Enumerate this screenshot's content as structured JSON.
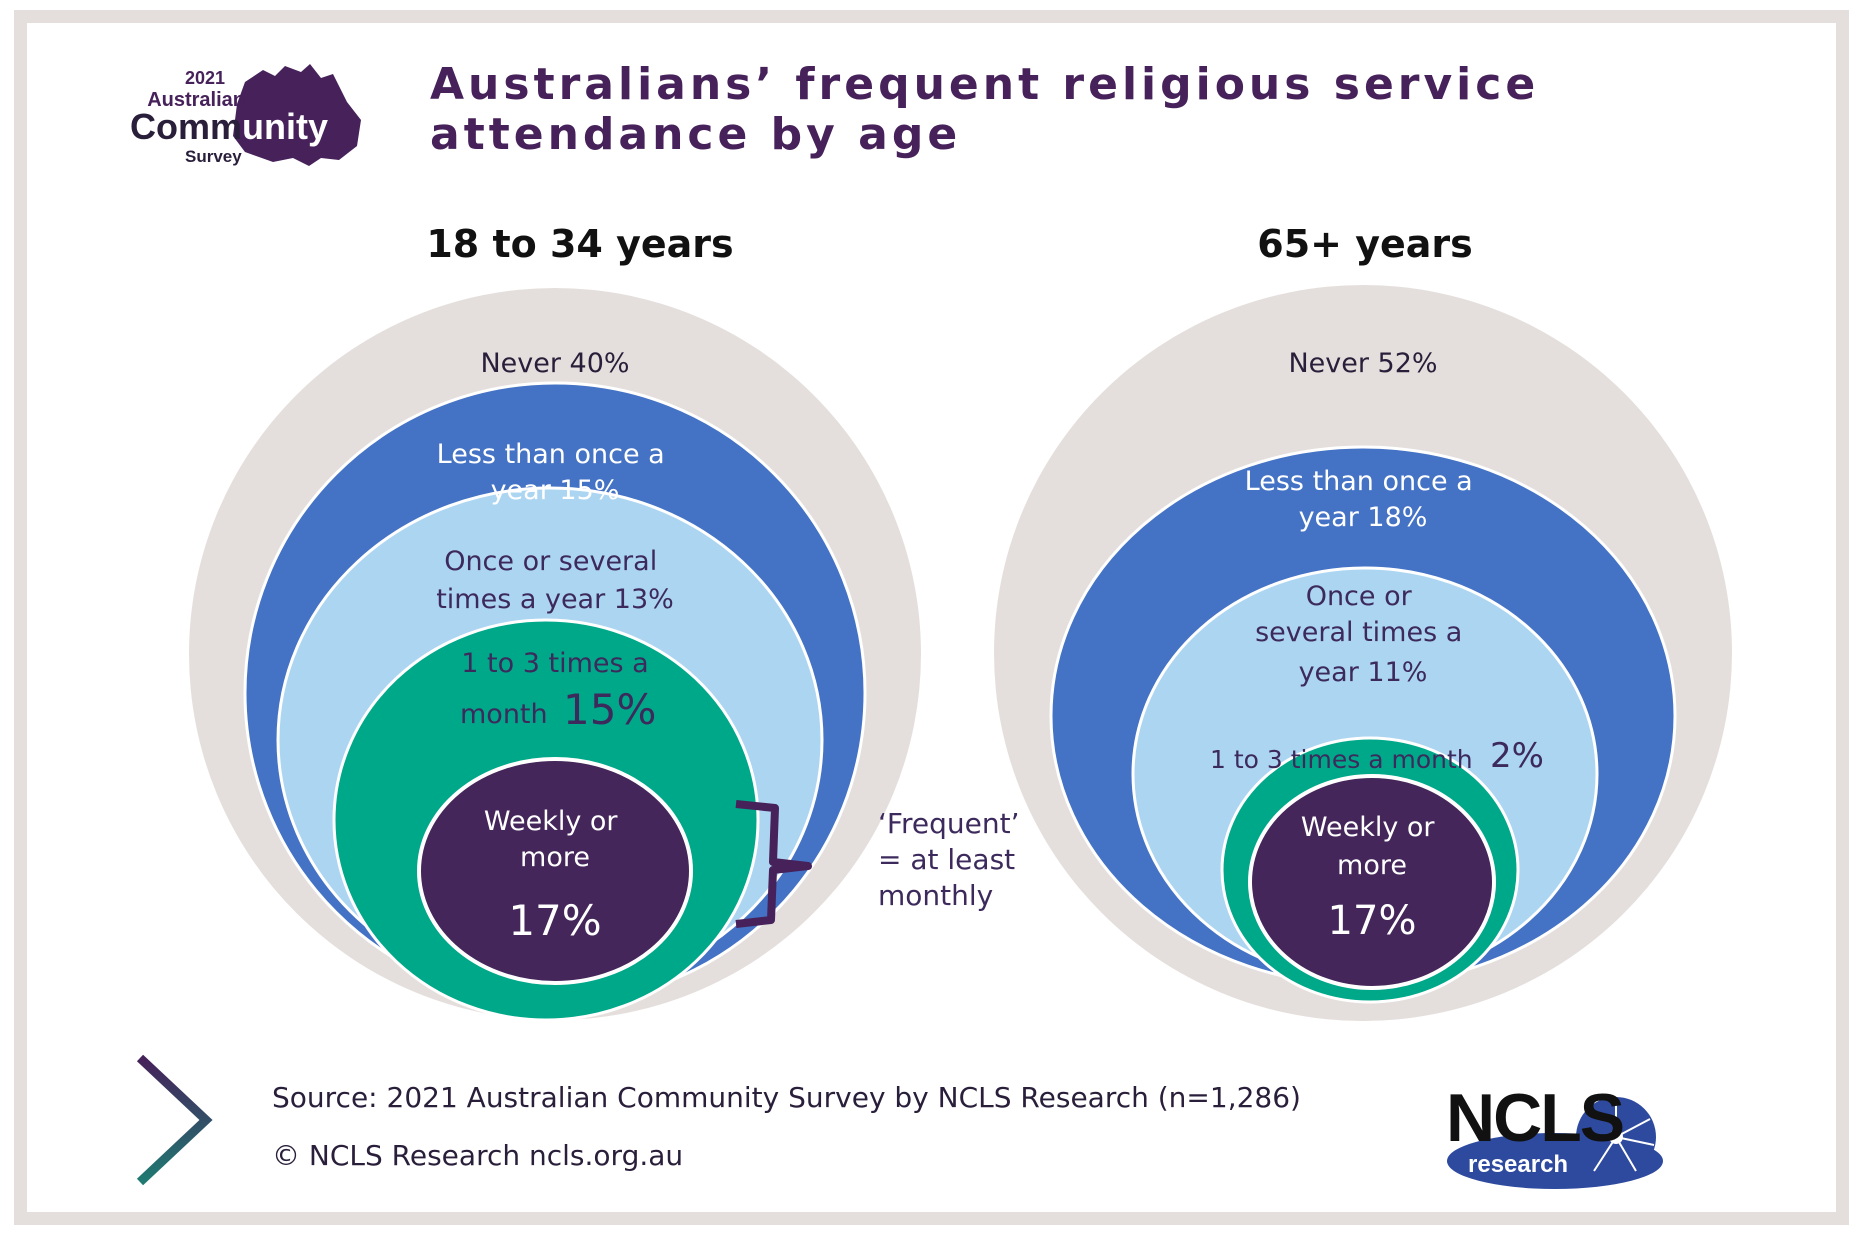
{
  "title": "Australians’ frequent religious service attendance by age",
  "logo_acs": {
    "year": "2021",
    "line1": "Australian",
    "line2a": "Comm",
    "line2b": "unity",
    "line3": "Survey"
  },
  "logo_ncls": {
    "main": "NCLS",
    "sub": "research"
  },
  "icons": {
    "chevron": "chevron-right-icon"
  },
  "colors": {
    "never": "#e4dfdc",
    "less_than_yearly": "#4472c4",
    "yearly": "#acd5f2",
    "monthly": "#00a88a",
    "weekly": "#44265a",
    "text_dark": "#46215a",
    "bracket": "#46215a"
  },
  "chart_data": [
    {
      "type": "nested-circles",
      "title": "18 to 34 years",
      "rings": [
        {
          "label": "Never",
          "value": 40,
          "text": "Never 40%"
        },
        {
          "label": "Less than once a year",
          "value": 15,
          "text": [
            "Less than once a",
            "year 15%"
          ]
        },
        {
          "label": "Once or several times a year",
          "value": 13,
          "text": [
            "Once or several",
            "times a year 13%"
          ]
        },
        {
          "label": "1 to 3 times a month",
          "value": 15,
          "text": [
            "1 to 3 times a",
            "month",
            "15%"
          ]
        },
        {
          "label": "Weekly or more",
          "value": 17,
          "text": [
            "Weekly or",
            "more",
            "17%"
          ]
        }
      ],
      "annotation": [
        "‘Frequent’",
        "= at least",
        "monthly"
      ]
    },
    {
      "type": "nested-circles",
      "title": "65+ years",
      "rings": [
        {
          "label": "Never",
          "value": 52,
          "text": "Never 52%"
        },
        {
          "label": "Less than once a year",
          "value": 18,
          "text": [
            "Less than once a",
            "year 18%"
          ]
        },
        {
          "label": "Once or several times a year",
          "value": 11,
          "text": [
            "Once or",
            "several times a",
            "year 11%"
          ]
        },
        {
          "label": "1 to 3 times a month",
          "value": 2,
          "text": [
            "1 to 3 times a month",
            "2%"
          ]
        },
        {
          "label": "Weekly or more",
          "value": 17,
          "text": [
            "Weekly or",
            "more",
            "17%"
          ]
        }
      ]
    }
  ],
  "footer": {
    "source": "Source: 2021 Australian Community Survey by NCLS Research (n=1,286)",
    "copyright": "© NCLS Research   ncls.org.au"
  }
}
